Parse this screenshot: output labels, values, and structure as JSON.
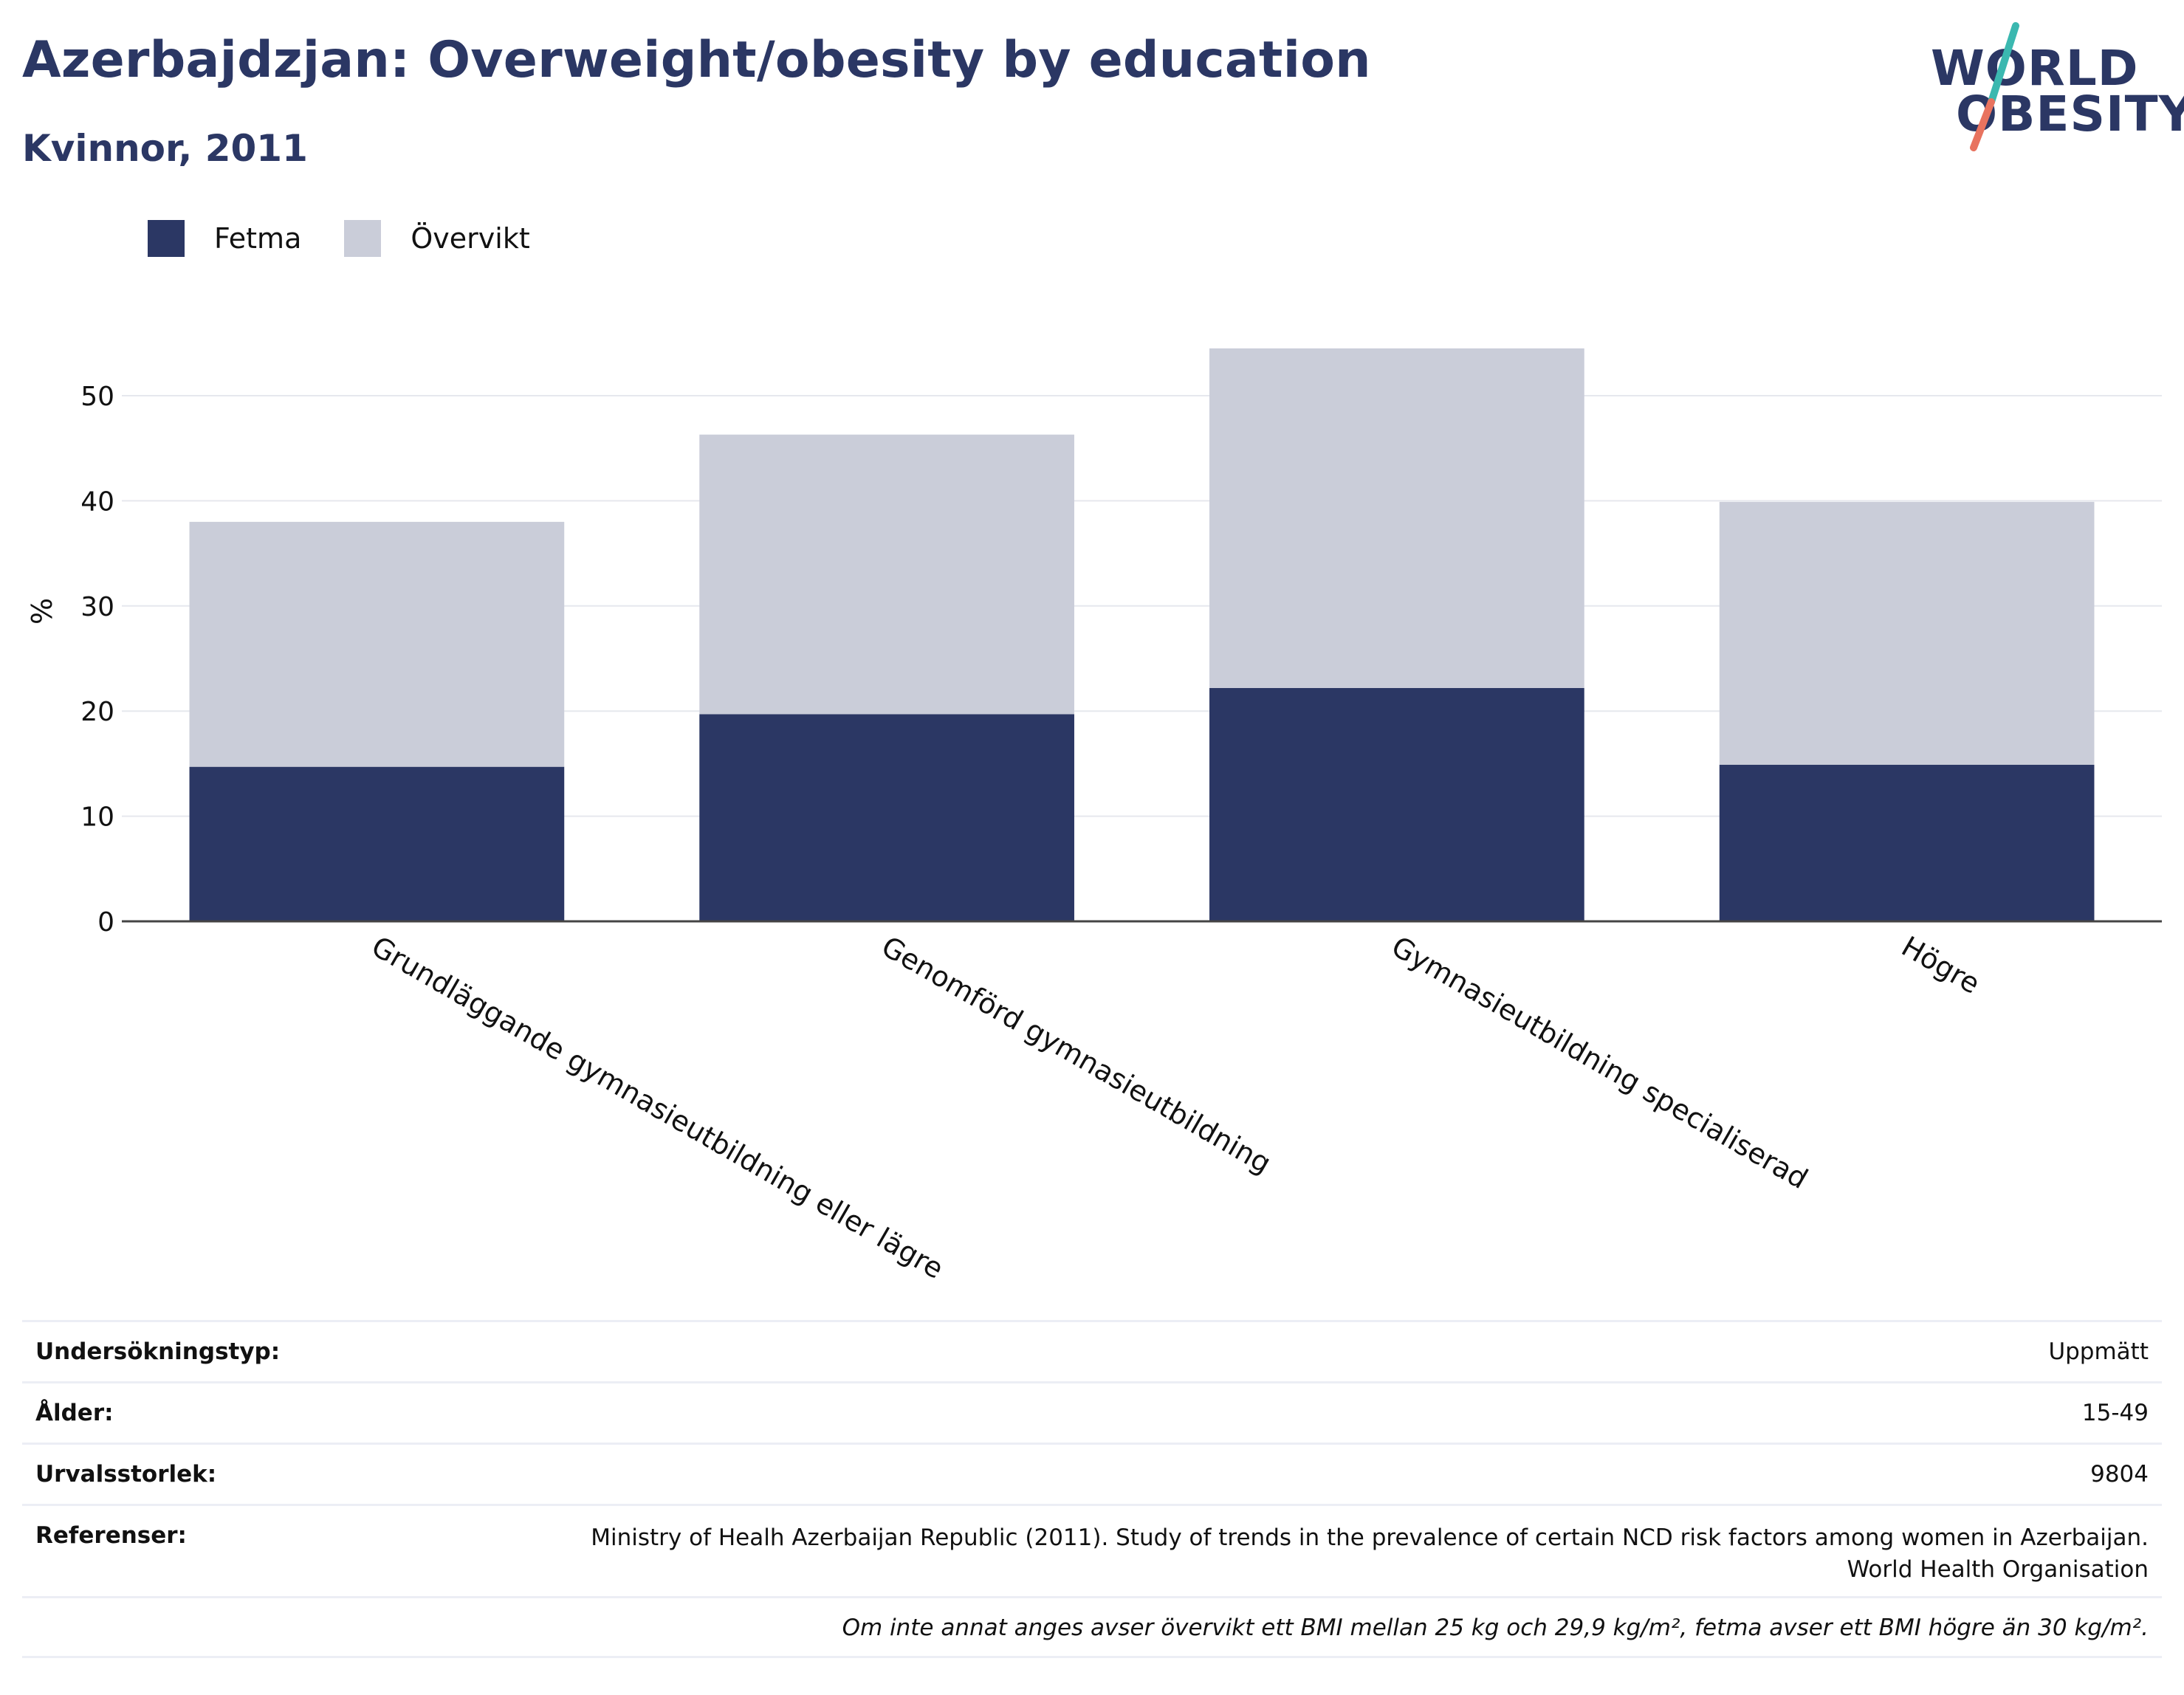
{
  "title": "Azerbajdzjan: Overweight/obesity by education",
  "subtitle": "Kvinnor, 2011",
  "logo": {
    "line1": "WORLD",
    "line2": "OBESITY"
  },
  "colors": {
    "fetma": "#2b3764",
    "overvikt": "#cacdd9",
    "title": "#2b3764",
    "logo_teal": "#3bb8b0",
    "logo_coral": "#e8735f"
  },
  "legend": [
    {
      "label": "Fetma",
      "color": "#2b3764"
    },
    {
      "label": "Övervikt",
      "color": "#cacdd9"
    }
  ],
  "chart_data": {
    "type": "bar",
    "stacked": true,
    "categories": [
      "Grundläggande gymnasieutbildning eller lägre",
      "Genomförd gymnasieutbildning",
      "Gymnasieutbildning specialiserad",
      "Högre"
    ],
    "series": [
      {
        "name": "Fetma",
        "values": [
          14.7,
          19.7,
          22.2,
          14.9
        ]
      },
      {
        "name": "Övervikt",
        "values": [
          23.3,
          26.6,
          32.3,
          25.0
        ]
      }
    ],
    "totals": [
      38.0,
      46.3,
      54.5,
      39.9
    ],
    "ylabel": "%",
    "xlabel": "",
    "ylim": [
      0,
      57
    ],
    "yticks": [
      0,
      10,
      20,
      30,
      40,
      50
    ],
    "grid": true,
    "legend_position": "top-left"
  },
  "info": {
    "survey_type": {
      "label": "Undersökningstyp:",
      "value": "Uppmätt"
    },
    "age": {
      "label": "Ålder:",
      "value": "15-49"
    },
    "sample_size": {
      "label": "Urvalsstorlek:",
      "value": "9804"
    },
    "references": {
      "label": "Referenser:",
      "value_line1": "Ministry of Healh Azerbaijan Republic (2011). Study of trends in the prevalence of certain NCD risk factors among women in Azerbaijan.",
      "value_line2": "World Health Organisation"
    },
    "footnote": "Om inte annat anges avser övervikt ett BMI mellan 25 kg och 29,9 kg/m², fetma avser ett BMI högre än 30 kg/m²."
  }
}
